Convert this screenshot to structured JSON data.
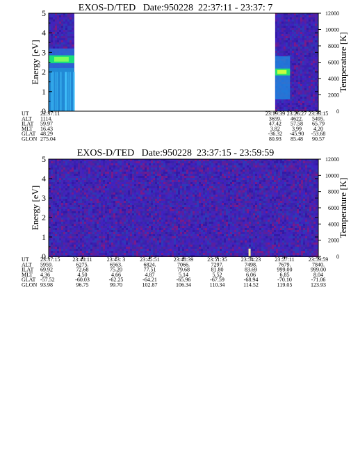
{
  "chart_data": [
    {
      "type": "heatmap",
      "title": "EXOS-D/TED   Date:950228  22:37:11 - 23:37: 7",
      "ylabel": "Energy [eV]",
      "ylabel_right": "Temperature [K]",
      "ylim": [
        0,
        5
      ],
      "ylim_right": [
        0,
        12000
      ],
      "yticks": [
        "0",
        "1",
        "2",
        "3",
        "4",
        "5"
      ],
      "yticks_right": [
        "0",
        "2000",
        "4000",
        "6000",
        "8000",
        "10000",
        "12000"
      ],
      "data_segments": [
        [
          0.0,
          0.095
        ],
        [
          0.84,
          1.0
        ]
      ],
      "bright_features": [
        {
          "t": 0.05,
          "energy": 2.65,
          "band": 0.4
        },
        {
          "t": 0.87,
          "energy": 2.0,
          "band": 0.35
        }
      ],
      "table": {
        "row_labels": [
          "UT",
          "ALT",
          "ILAT",
          "MLT",
          "GLAT",
          "GLON"
        ],
        "columns": [
          {
            "t": 0.0,
            "values": [
              "22:37:11",
              "1114.",
              "59.97",
              "16.43",
              "48.29",
              "275.04"
            ]
          },
          {
            "t": 0.84,
            "values": [
              "23:19:39",
              "3659.",
              "47.42",
              "3.82",
              "-36.32",
              "80.93"
            ]
          },
          {
            "t": 0.92,
            "values": [
              "23:26:27",
              "4622.",
              "57.58",
              "3.99",
              "-45.90",
              "85.48"
            ]
          },
          {
            "t": 1.0,
            "values": [
              "23:33:15",
              "5495.",
              "65.79",
              "4.20",
              "-53.68",
              "90.57"
            ]
          }
        ]
      }
    },
    {
      "type": "heatmap",
      "title": "EXOS-D/TED   Date:950228  23:37:15 - 23:59:59",
      "ylabel": "Energy [eV]",
      "ylabel_right": "Temperature [K]",
      "ylim": [
        0,
        5
      ],
      "ylim_right": [
        0,
        12000
      ],
      "yticks": [
        "0",
        "1",
        "2",
        "3",
        "4",
        "5"
      ],
      "yticks_right": [
        "0",
        "2000",
        "4000",
        "6000",
        "8000",
        "10000",
        "12000"
      ],
      "data_segments": [
        [
          0.0,
          1.0
        ]
      ],
      "bright_features": [
        {
          "t": 0.745,
          "energy": 0.25,
          "band": 0.3
        }
      ],
      "table": {
        "row_labels": [
          "UT",
          "ALT",
          "ILAT",
          "MLT",
          "GLAT",
          "GLON"
        ],
        "columns": [
          {
            "t": 0.0,
            "values": [
              "23:37:15",
              "5959.",
              "69.92",
              "4.36",
              "-57.52",
              "93.98"
            ]
          },
          {
            "t": 0.125,
            "values": [
              "23:40:11",
              "6275.",
              "72.68",
              "4.50",
              "-60.03",
              "96.75"
            ]
          },
          {
            "t": 0.25,
            "values": [
              "23:43: 3",
              "6563.",
              "75.20",
              "4.66",
              "-62.25",
              "99.70"
            ]
          },
          {
            "t": 0.375,
            "values": [
              "23:45:51",
              "6824.",
              "77.51",
              "4.87",
              "-64.21",
              "102.87"
            ]
          },
          {
            "t": 0.5,
            "values": [
              "23:48:39",
              "7066.",
              "79.68",
              "5.14",
              "-65.96",
              "106.34"
            ]
          },
          {
            "t": 0.625,
            "values": [
              "23:51:35",
              "7297.",
              "81.80",
              "5.52",
              "-67.59",
              "110.34"
            ]
          },
          {
            "t": 0.75,
            "values": [
              "23:54:23",
              "7498.",
              "83.69",
              "6.06",
              "-68.94",
              "114.52"
            ]
          },
          {
            "t": 0.875,
            "values": [
              "23:57:11",
              "7679.",
              "999.00",
              "6.85",
              "-70.10",
              "119.05"
            ]
          },
          {
            "t": 1.0,
            "values": [
              "23:59:59",
              "7840.",
              "999.00",
              "8.04",
              "-71.06",
              "123.93"
            ]
          }
        ]
      }
    }
  ]
}
